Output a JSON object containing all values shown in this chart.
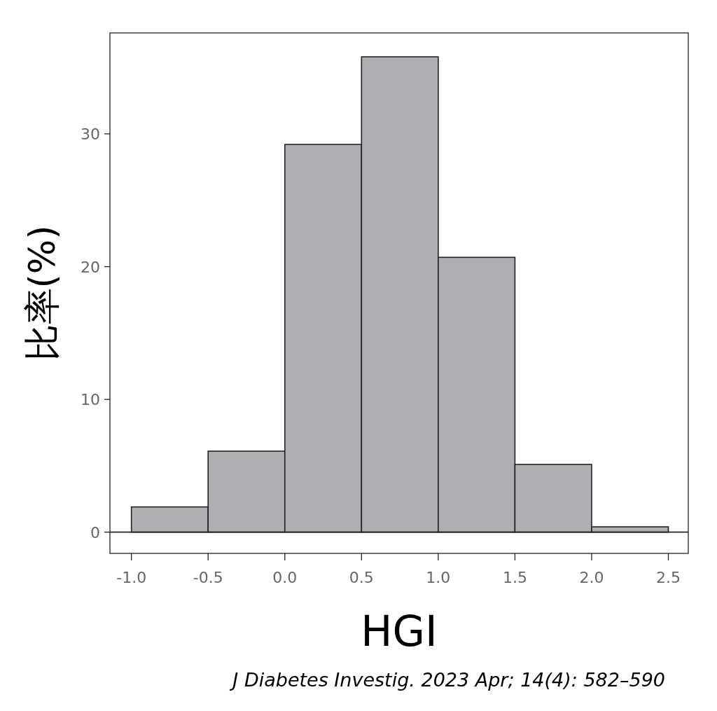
{
  "chart_data": {
    "type": "histogram",
    "xlabel": "HGI",
    "ylabel": "比率(%)",
    "bins": [
      -1.0,
      -0.5,
      0.0,
      0.5,
      1.0,
      1.5,
      2.0,
      2.5
    ],
    "values": [
      1.9,
      6.1,
      29.2,
      35.8,
      20.7,
      5.1,
      0.4
    ],
    "color": "#aeafb3",
    "xlim": [
      -1.14,
      2.63
    ],
    "ylim": [
      -1.6,
      37.6
    ],
    "xticks": [
      {
        "value": -1,
        "label": "-1.0"
      },
      {
        "value": -0.5,
        "label": "-0.5"
      },
      {
        "value": 0,
        "label": "0.0"
      },
      {
        "value": 0.5,
        "label": "0.5"
      },
      {
        "value": 1,
        "label": "1.0"
      },
      {
        "value": 1.5,
        "label": "1.5"
      },
      {
        "value": 2,
        "label": "2.0"
      },
      {
        "value": 2.5,
        "label": "2.5"
      }
    ],
    "yticks": [
      0,
      10,
      20,
      30
    ],
    "ref_lines": [
      {
        "axis": "y",
        "value": 0
      }
    ],
    "annotations": [
      "*J Diabetes Investig. 2023 Apr; 14(4): 582–590*"
    ]
  }
}
